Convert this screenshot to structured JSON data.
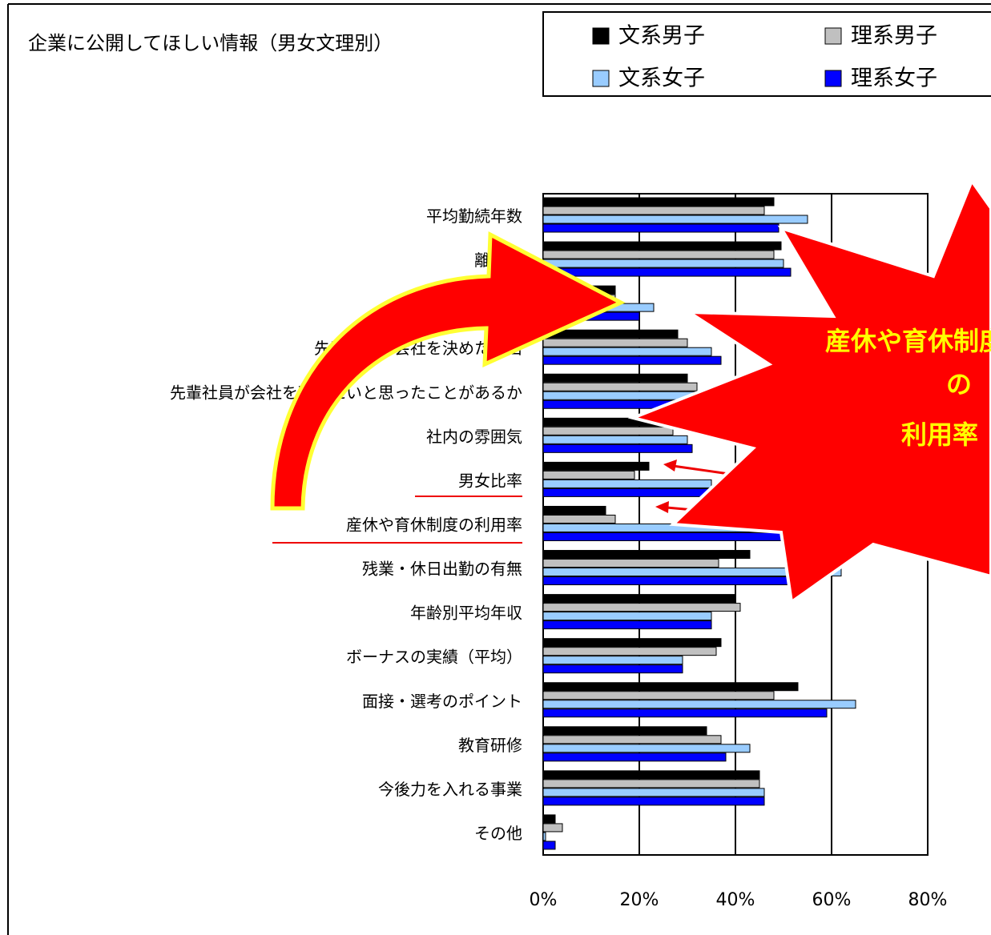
{
  "chart_data": {
    "type": "hbar",
    "title": "企業に公開してほしい情報（男女文理別）",
    "categories": [
      "平均勤続年数",
      "離職率",
      null,
      "先輩社員が会社を決めた理由",
      "先輩社員が会社を辞めたいと思ったことがあるか",
      "社内の雰囲気",
      "男女比率",
      "産休や育休制度の利用率",
      "残業・休日出勤の有無",
      "年齢別平均年収",
      "ボーナスの実績（平均）",
      "面接・選考のポイント",
      "教育研修",
      "今後力を入れる事業",
      "その他"
    ],
    "series": [
      {
        "name": "文系男子",
        "color": "#000000",
        "values": [
          48,
          49.5,
          15,
          28,
          30,
          25,
          22,
          13,
          43,
          40,
          37,
          53,
          34,
          45,
          2.5
        ]
      },
      {
        "name": "理系男子",
        "color": "#c0c0c0",
        "values": [
          46,
          48,
          15,
          30,
          32,
          27,
          19,
          15,
          36.5,
          41,
          36,
          48,
          37,
          45,
          4
        ]
      },
      {
        "name": "文系女子",
        "color": "#99ccff",
        "values": [
          55,
          50,
          23,
          35,
          38,
          30,
          35,
          45,
          62,
          35,
          29,
          65,
          43,
          46,
          0.5
        ]
      },
      {
        "name": "理系女子",
        "color": "#0000ff",
        "values": [
          49,
          51.5,
          20,
          37,
          35,
          31,
          35,
          49.5,
          55,
          35,
          29,
          59,
          38,
          46,
          2.5
        ]
      }
    ],
    "xlim": [
      0,
      80
    ],
    "xticks": [
      {
        "value": 0,
        "label": "0%"
      },
      {
        "value": 20,
        "label": "20%"
      },
      {
        "value": 40,
        "label": "40%"
      },
      {
        "value": 60,
        "label": "60%"
      },
      {
        "value": 80,
        "label": "80%"
      }
    ],
    "grid": true,
    "legend": "top-right",
    "annotation": [
      "産休や育休制度",
      "の",
      "利用率"
    ]
  }
}
